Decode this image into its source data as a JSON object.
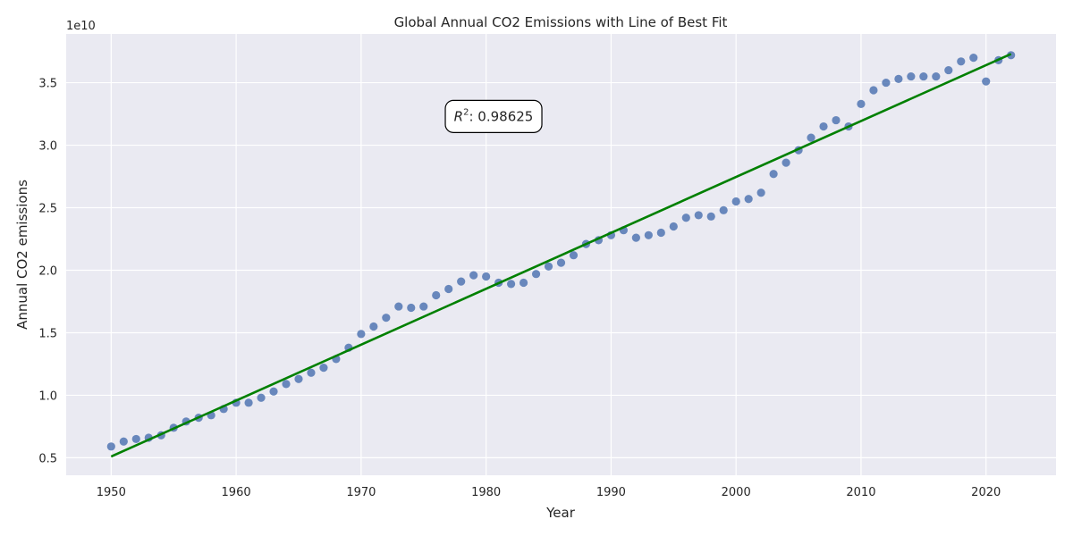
{
  "chart_data": {
    "type": "scatter",
    "title": "Global Annual CO2 Emissions with Line of Best Fit",
    "xlabel": "Year",
    "ylabel": "Annual CO2 emissions",
    "y_offset_label": "1e10",
    "xlim": [
      1946.4,
      2025.6
    ],
    "ylim": [
      3.6,
      38.9
    ],
    "y_scale_factor": 10000000000.0,
    "x_ticks": [
      1950,
      1960,
      1970,
      1980,
      1990,
      2000,
      2010,
      2020
    ],
    "x_tick_labels": [
      "1950",
      "1960",
      "1970",
      "1980",
      "1990",
      "2000",
      "2010",
      "2020"
    ],
    "y_ticks": [
      5,
      10,
      15,
      20,
      25,
      30,
      35
    ],
    "y_tick_labels": [
      "0.5",
      "1.0",
      "1.5",
      "2.0",
      "2.5",
      "3.0",
      "3.5"
    ],
    "grid": true,
    "background": "#eaeaf2",
    "series": [
      {
        "kind": "points",
        "color": "#4c72b0",
        "x": [
          1950,
          1951,
          1952,
          1953,
          1954,
          1955,
          1956,
          1957,
          1958,
          1959,
          1960,
          1961,
          1962,
          1963,
          1964,
          1965,
          1966,
          1967,
          1968,
          1969,
          1970,
          1971,
          1972,
          1973,
          1974,
          1975,
          1976,
          1977,
          1978,
          1979,
          1980,
          1981,
          1982,
          1983,
          1984,
          1985,
          1986,
          1987,
          1988,
          1989,
          1990,
          1991,
          1992,
          1993,
          1994,
          1995,
          1996,
          1997,
          1998,
          1999,
          2000,
          2001,
          2002,
          2003,
          2004,
          2005,
          2006,
          2007,
          2008,
          2009,
          2010,
          2011,
          2012,
          2013,
          2014,
          2015,
          2016,
          2017,
          2018,
          2019,
          2020,
          2021,
          2022
        ],
        "y": [
          5.9,
          6.3,
          6.5,
          6.6,
          6.8,
          7.4,
          7.9,
          8.2,
          8.4,
          8.9,
          9.4,
          9.4,
          9.8,
          10.3,
          10.9,
          11.3,
          11.8,
          12.2,
          12.9,
          13.8,
          14.9,
          15.5,
          16.2,
          17.1,
          17.0,
          17.1,
          18.0,
          18.5,
          19.1,
          19.6,
          19.5,
          19.0,
          18.9,
          19.0,
          19.7,
          20.3,
          20.6,
          21.2,
          22.1,
          22.4,
          22.8,
          23.2,
          22.6,
          22.8,
          23.0,
          23.5,
          24.2,
          24.4,
          24.3,
          24.8,
          25.5,
          25.7,
          26.2,
          27.7,
          28.6,
          29.6,
          30.6,
          31.5,
          32.0,
          31.5,
          33.3,
          34.4,
          35.0,
          35.3,
          35.5,
          35.5,
          35.5,
          36.0,
          36.7,
          37.0,
          35.1,
          36.8,
          37.2
        ]
      },
      {
        "kind": "fit",
        "color": "#008000",
        "x": [
          1950,
          2022
        ],
        "y": [
          5.1,
          37.3
        ]
      }
    ],
    "annotations": [
      {
        "text_prefix": "R",
        "superscript": "2",
        "text_suffix": ": 0.98625",
        "x": 1980.6,
        "y": 32.3
      }
    ]
  }
}
